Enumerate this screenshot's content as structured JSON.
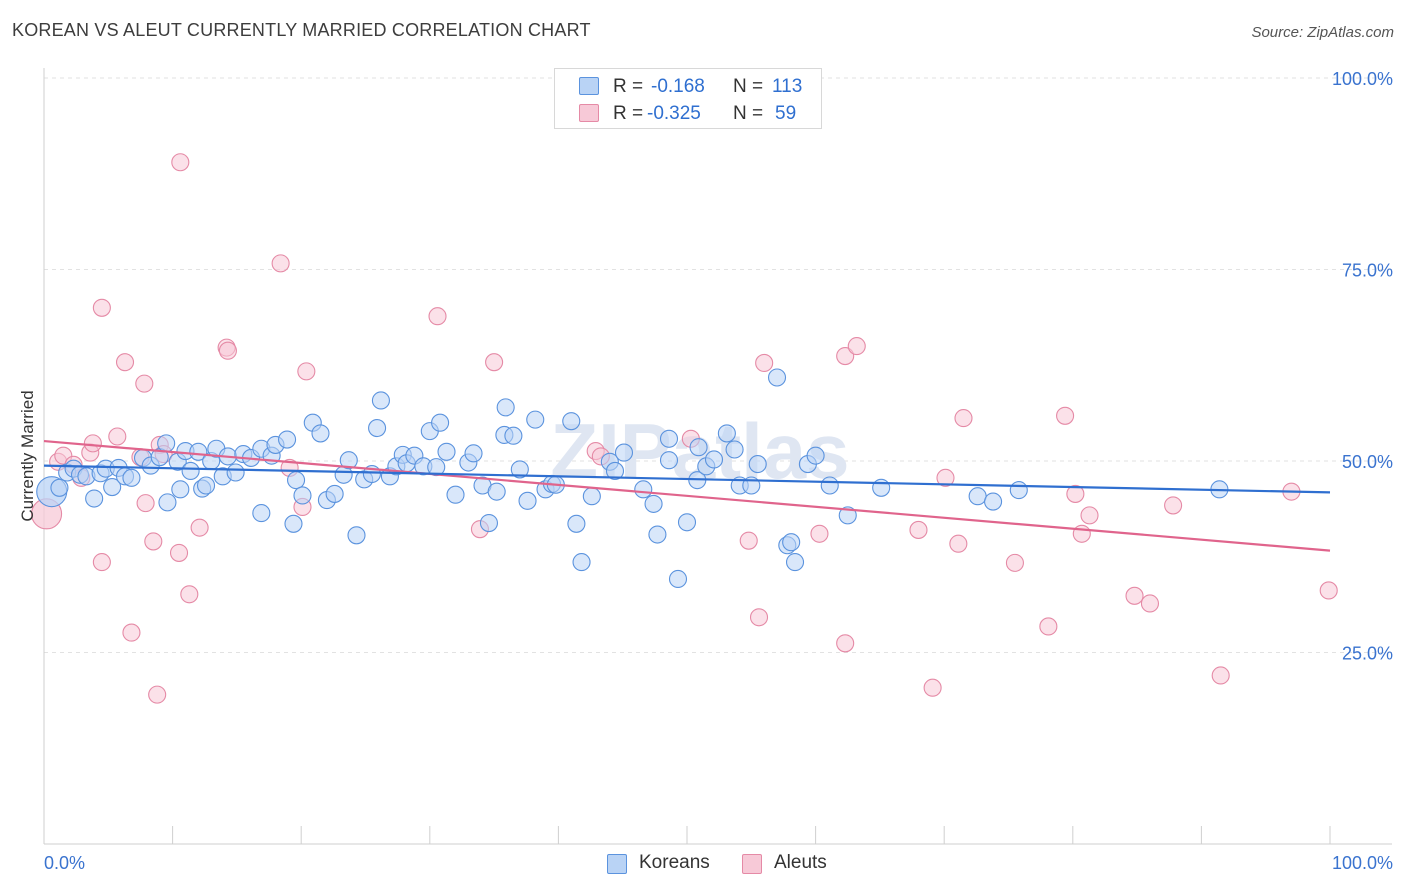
{
  "title": "KOREAN VS ALEUT CURRENTLY MARRIED CORRELATION CHART",
  "source": "Source: ZipAtlas.com",
  "watermark": "ZIPatlas",
  "colors": {
    "koreans_fill": "#b9d3f5",
    "koreans_stroke": "#5b93de",
    "koreans_line": "#2f6fd0",
    "aleuts_fill": "#f7c9d7",
    "aleuts_stroke": "#e58aa6",
    "aleuts_line": "#e0648c",
    "tick_label": "#3a73cf"
  },
  "legend": {
    "koreans": {
      "r_label": "R =",
      "r_value": "-0.168",
      "n_label": "N =",
      "n_value": "113"
    },
    "aleuts": {
      "r_label": "R =",
      "r_value": "-0.325",
      "n_label": "N =",
      "n_value": "59"
    }
  },
  "chart_data": {
    "type": "scatter",
    "title": "KOREAN VS ALEUT CURRENTLY MARRIED CORRELATION CHART",
    "xlabel": "",
    "ylabel": "Currently Married",
    "xlim": [
      0,
      100
    ],
    "ylim": [
      0,
      100
    ],
    "x_tick_labels": [
      "0.0%",
      "100.0%"
    ],
    "y_tick_labels": [
      "25.0%",
      "50.0%",
      "75.0%",
      "100.0%"
    ],
    "y_ticks": [
      25,
      50,
      75,
      100
    ],
    "grid": true,
    "legend_position": "bottom-center",
    "series": [
      {
        "name": "Koreans",
        "trend": [
          [
            0,
            49.4
          ],
          [
            100,
            45.9
          ]
        ],
        "points": [
          [
            0.6,
            46.0
          ],
          [
            1.2,
            46.5
          ],
          [
            1.8,
            48.5
          ],
          [
            2.3,
            49.0
          ],
          [
            2.8,
            48.2
          ],
          [
            3.3,
            48.0
          ],
          [
            3.9,
            45.1
          ],
          [
            4.4,
            48.4
          ],
          [
            4.8,
            49.0
          ],
          [
            5.3,
            46.6
          ],
          [
            5.8,
            49.1
          ],
          [
            6.3,
            48.0
          ],
          [
            6.8,
            47.8
          ],
          [
            7.7,
            50.4
          ],
          [
            8.3,
            49.4
          ],
          [
            9.0,
            50.5
          ],
          [
            9.5,
            52.3
          ],
          [
            9.6,
            44.6
          ],
          [
            10.4,
            49.9
          ],
          [
            10.6,
            46.3
          ],
          [
            11.0,
            51.3
          ],
          [
            11.4,
            48.7
          ],
          [
            12.0,
            51.2
          ],
          [
            12.3,
            46.4
          ],
          [
            12.6,
            46.8
          ],
          [
            13.0,
            50.0
          ],
          [
            13.4,
            51.6
          ],
          [
            13.9,
            48.0
          ],
          [
            14.3,
            50.6
          ],
          [
            14.9,
            48.5
          ],
          [
            15.5,
            50.9
          ],
          [
            16.1,
            50.4
          ],
          [
            16.9,
            43.2
          ],
          [
            16.9,
            51.6
          ],
          [
            17.7,
            50.7
          ],
          [
            18.0,
            52.1
          ],
          [
            18.9,
            52.8
          ],
          [
            19.4,
            41.8
          ],
          [
            19.6,
            47.5
          ],
          [
            20.1,
            45.5
          ],
          [
            20.9,
            55.0
          ],
          [
            21.5,
            53.6
          ],
          [
            22.0,
            44.9
          ],
          [
            22.6,
            45.7
          ],
          [
            23.3,
            48.2
          ],
          [
            23.7,
            50.1
          ],
          [
            24.3,
            40.3
          ],
          [
            24.9,
            47.6
          ],
          [
            25.5,
            48.3
          ],
          [
            25.9,
            54.3
          ],
          [
            26.2,
            57.9
          ],
          [
            26.9,
            48.0
          ],
          [
            27.4,
            49.3
          ],
          [
            27.9,
            50.8
          ],
          [
            28.2,
            49.7
          ],
          [
            28.8,
            50.7
          ],
          [
            29.5,
            49.3
          ],
          [
            30.0,
            53.9
          ],
          [
            30.5,
            49.2
          ],
          [
            30.8,
            55.0
          ],
          [
            31.3,
            51.2
          ],
          [
            32.0,
            45.6
          ],
          [
            33.0,
            49.8
          ],
          [
            33.4,
            51.0
          ],
          [
            34.1,
            46.8
          ],
          [
            34.6,
            41.9
          ],
          [
            35.2,
            46.0
          ],
          [
            35.8,
            53.4
          ],
          [
            35.9,
            57.0
          ],
          [
            36.5,
            53.3
          ],
          [
            37.0,
            48.9
          ],
          [
            37.6,
            44.8
          ],
          [
            38.2,
            55.4
          ],
          [
            39.0,
            46.3
          ],
          [
            39.5,
            47.0
          ],
          [
            39.8,
            46.9
          ],
          [
            41.0,
            55.2
          ],
          [
            41.4,
            41.8
          ],
          [
            41.8,
            36.8
          ],
          [
            42.6,
            45.4
          ],
          [
            44.0,
            49.9
          ],
          [
            44.4,
            48.7
          ],
          [
            45.1,
            51.1
          ],
          [
            46.6,
            46.3
          ],
          [
            47.4,
            44.4
          ],
          [
            47.7,
            40.4
          ],
          [
            48.6,
            52.9
          ],
          [
            48.6,
            50.1
          ],
          [
            49.3,
            34.6
          ],
          [
            50.0,
            42.0
          ],
          [
            50.8,
            47.5
          ],
          [
            50.9,
            51.8
          ],
          [
            51.5,
            49.3
          ],
          [
            52.1,
            50.2
          ],
          [
            53.1,
            53.6
          ],
          [
            53.7,
            51.5
          ],
          [
            54.1,
            46.8
          ],
          [
            55.0,
            46.8
          ],
          [
            55.5,
            49.6
          ],
          [
            57.0,
            60.9
          ],
          [
            57.8,
            39.0
          ],
          [
            58.1,
            39.4
          ],
          [
            58.4,
            36.8
          ],
          [
            59.4,
            49.6
          ],
          [
            60.0,
            50.7
          ],
          [
            61.1,
            46.8
          ],
          [
            62.5,
            42.9
          ],
          [
            65.1,
            46.5
          ],
          [
            72.6,
            45.4
          ],
          [
            73.8,
            44.7
          ],
          [
            75.8,
            46.2
          ],
          [
            91.4,
            46.3
          ]
        ]
      },
      {
        "name": "Aleuts",
        "trend": [
          [
            0,
            52.6
          ],
          [
            100,
            38.3
          ]
        ],
        "points": [
          [
            0.2,
            43.1
          ],
          [
            1.1,
            49.9
          ],
          [
            1.5,
            50.7
          ],
          [
            2.3,
            49.5
          ],
          [
            2.9,
            47.8
          ],
          [
            3.6,
            51.1
          ],
          [
            3.8,
            52.3
          ],
          [
            4.5,
            36.8
          ],
          [
            4.5,
            70.0
          ],
          [
            5.7,
            53.2
          ],
          [
            6.3,
            62.9
          ],
          [
            6.8,
            27.6
          ],
          [
            7.5,
            50.5
          ],
          [
            7.8,
            60.1
          ],
          [
            7.9,
            44.5
          ],
          [
            8.5,
            39.5
          ],
          [
            8.8,
            19.5
          ],
          [
            9.0,
            52.1
          ],
          [
            9.3,
            50.9
          ],
          [
            10.5,
            38.0
          ],
          [
            10.6,
            89.0
          ],
          [
            11.3,
            32.6
          ],
          [
            12.1,
            41.3
          ],
          [
            14.2,
            64.8
          ],
          [
            14.3,
            64.4
          ],
          [
            18.4,
            75.8
          ],
          [
            19.1,
            49.1
          ],
          [
            20.1,
            44.0
          ],
          [
            20.4,
            61.7
          ],
          [
            30.6,
            68.9
          ],
          [
            33.9,
            41.1
          ],
          [
            35.0,
            62.9
          ],
          [
            42.9,
            51.3
          ],
          [
            43.3,
            50.6
          ],
          [
            50.3,
            52.9
          ],
          [
            54.8,
            39.6
          ],
          [
            55.6,
            29.6
          ],
          [
            56.0,
            62.8
          ],
          [
            60.3,
            40.5
          ],
          [
            62.3,
            63.7
          ],
          [
            62.3,
            26.2
          ],
          [
            63.2,
            65.0
          ],
          [
            68.0,
            41.0
          ],
          [
            69.1,
            20.4
          ],
          [
            70.1,
            47.8
          ],
          [
            71.1,
            39.2
          ],
          [
            71.5,
            55.6
          ],
          [
            75.5,
            36.7
          ],
          [
            78.1,
            28.4
          ],
          [
            79.4,
            55.9
          ],
          [
            80.2,
            45.7
          ],
          [
            80.7,
            40.5
          ],
          [
            81.3,
            42.9
          ],
          [
            84.8,
            32.4
          ],
          [
            86.0,
            31.4
          ],
          [
            87.8,
            44.2
          ],
          [
            91.5,
            22.0
          ],
          [
            97.0,
            46.0
          ],
          [
            99.9,
            33.1
          ]
        ]
      }
    ]
  },
  "bottom_legend": {
    "koreans": "Koreans",
    "aleuts": "Aleuts"
  }
}
